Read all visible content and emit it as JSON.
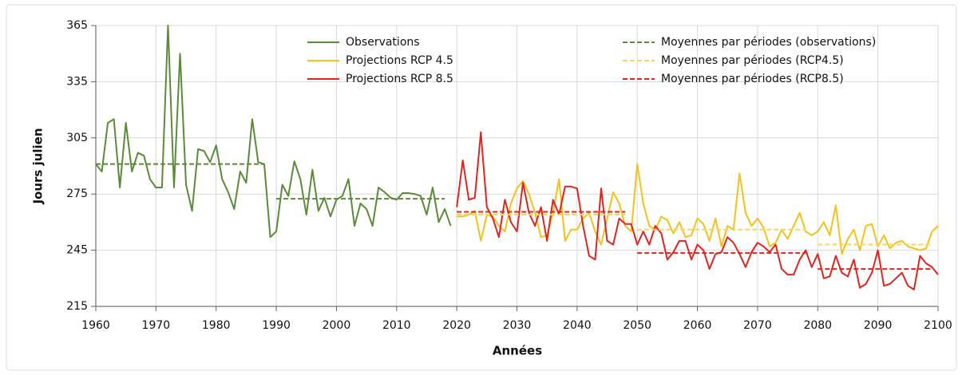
{
  "chart_data": {
    "type": "line",
    "ylabel": "Jours julien",
    "xlabel": "Années",
    "xlim": [
      1960,
      2100
    ],
    "xticks": [
      1960,
      1970,
      1980,
      1990,
      2000,
      2010,
      2020,
      2030,
      2040,
      2050,
      2060,
      2070,
      2080,
      2090,
      2100
    ],
    "ylim": [
      215,
      365
    ],
    "yticks": [
      215,
      245,
      275,
      305,
      335,
      365
    ],
    "grid": true,
    "x": [
      1960,
      1961,
      1962,
      1963,
      1964,
      1965,
      1966,
      1967,
      1968,
      1969,
      1970,
      1971,
      1972,
      1973,
      1974,
      1975,
      1976,
      1977,
      1978,
      1979,
      1980,
      1981,
      1982,
      1983,
      1984,
      1985,
      1986,
      1987,
      1988,
      1989,
      1990,
      1991,
      1992,
      1993,
      1994,
      1995,
      1996,
      1997,
      1998,
      1999,
      2000,
      2001,
      2002,
      2003,
      2004,
      2005,
      2006,
      2007,
      2008,
      2009,
      2010,
      2011,
      2012,
      2013,
      2014,
      2015,
      2016,
      2017,
      2018,
      2019,
      2020,
      2021,
      2022,
      2023,
      2024,
      2025,
      2026,
      2027,
      2028,
      2029,
      2030,
      2031,
      2032,
      2033,
      2034,
      2035,
      2036,
      2037,
      2038,
      2039,
      2040,
      2041,
      2042,
      2043,
      2044,
      2045,
      2046,
      2047,
      2048,
      2049,
      2050,
      2051,
      2052,
      2053,
      2054,
      2055,
      2056,
      2057,
      2058,
      2059,
      2060,
      2061,
      2062,
      2063,
      2064,
      2065,
      2066,
      2067,
      2068,
      2069,
      2070,
      2071,
      2072,
      2073,
      2074,
      2075,
      2076,
      2077,
      2078,
      2079,
      2080,
      2081,
      2082,
      2083,
      2084,
      2085,
      2086,
      2087,
      2088,
      2089,
      2090,
      2091,
      2092,
      2093,
      2094,
      2095,
      2096,
      2097,
      2098,
      2099,
      2100
    ],
    "series": [
      {
        "name": "Observations",
        "color": "#5b8b3a",
        "values": [
          291,
          287,
          313,
          315,
          278.5,
          313,
          287,
          297,
          295.5,
          283,
          278.5,
          278.5,
          365,
          278.5,
          350,
          280,
          266,
          299,
          298,
          292,
          301,
          283,
          276,
          267,
          287,
          281,
          315,
          292,
          291,
          252,
          255,
          280,
          274,
          292.5,
          283,
          264,
          288,
          266,
          273,
          263,
          272,
          274,
          283,
          258,
          270,
          267,
          258,
          278.5,
          276,
          273,
          272,
          275.5,
          275.5,
          275,
          274,
          264,
          278.5,
          260,
          267,
          258,
          null,
          null,
          null,
          null,
          null,
          null,
          null,
          null,
          null,
          null,
          null,
          null,
          null,
          null,
          null,
          null,
          null,
          null,
          null,
          null,
          null,
          null,
          null,
          null,
          null,
          null,
          null,
          null,
          null,
          null,
          null,
          null,
          null,
          null,
          null,
          null,
          null,
          null,
          null,
          null,
          null,
          null,
          null,
          null,
          null,
          null,
          null,
          null,
          null,
          null,
          null,
          null,
          null,
          null,
          null,
          null,
          null,
          null,
          null,
          null,
          null,
          null,
          null,
          null,
          null,
          null,
          null,
          null,
          null,
          null,
          null,
          null,
          null,
          null,
          null,
          null,
          null,
          null,
          null,
          null,
          null
        ]
      },
      {
        "name": "Projections RCP 4.5",
        "color": "#f5c21b",
        "values": [
          null,
          null,
          null,
          null,
          null,
          null,
          null,
          null,
          null,
          null,
          null,
          null,
          null,
          null,
          null,
          null,
          null,
          null,
          null,
          null,
          null,
          null,
          null,
          null,
          null,
          null,
          null,
          null,
          null,
          null,
          null,
          null,
          null,
          null,
          null,
          null,
          null,
          null,
          null,
          null,
          null,
          null,
          null,
          null,
          null,
          null,
          null,
          null,
          null,
          null,
          null,
          null,
          null,
          null,
          null,
          null,
          null,
          null,
          null,
          null,
          263,
          263,
          264,
          266,
          250,
          264,
          263,
          258,
          255,
          270,
          278,
          282,
          275,
          265,
          252,
          253,
          265,
          283,
          250,
          256,
          256,
          262,
          265,
          255,
          248,
          262,
          276,
          270,
          258,
          255,
          291,
          270,
          258,
          256,
          263,
          261,
          254,
          260,
          252,
          253,
          262,
          259,
          250,
          262,
          247,
          258,
          256,
          286,
          265,
          258,
          262,
          257,
          247,
          249,
          256,
          251,
          258,
          265,
          255,
          253,
          255,
          260,
          253,
          269,
          243,
          251,
          256,
          245,
          258,
          259,
          247,
          253,
          246,
          249,
          250,
          247,
          246,
          245,
          246,
          255,
          258
        ]
      },
      {
        "name": "Projections RCP 8.5",
        "color": "#e4231f",
        "values": [
          null,
          null,
          null,
          null,
          null,
          null,
          null,
          null,
          null,
          null,
          null,
          null,
          null,
          null,
          null,
          null,
          null,
          null,
          null,
          null,
          null,
          null,
          null,
          null,
          null,
          null,
          null,
          null,
          null,
          null,
          null,
          null,
          null,
          null,
          null,
          null,
          null,
          null,
          null,
          null,
          null,
          null,
          null,
          null,
          null,
          null,
          null,
          null,
          null,
          null,
          null,
          null,
          null,
          null,
          null,
          null,
          null,
          null,
          null,
          null,
          268,
          293,
          272,
          273,
          308,
          268,
          262,
          252,
          272,
          260,
          255,
          281,
          265,
          258,
          268,
          250,
          272,
          264,
          279,
          279,
          278,
          258,
          242,
          240,
          278,
          250,
          248,
          262,
          259,
          259,
          248,
          255,
          248,
          258,
          254,
          240,
          244,
          250,
          250,
          240,
          248,
          245,
          235,
          243,
          244,
          252,
          249,
          243,
          236,
          244,
          249,
          247,
          244,
          248,
          235,
          232,
          232,
          240,
          245,
          236,
          243,
          230,
          231,
          242,
          233,
          231,
          240,
          225,
          227,
          233,
          245,
          226,
          227,
          230,
          233,
          226,
          224,
          242,
          238,
          236,
          232
        ]
      }
    ],
    "means": [
      {
        "name": "Moyennes par périodes (observations)",
        "color": "#5b8b3a",
        "periods": [
          [
            1960,
            1988
          ],
          [
            1990,
            2018
          ]
        ],
        "values": [
          291,
          272.5
        ]
      },
      {
        "name": "Moyennes par périodes (RCP4.5)",
        "color": "#f8d565",
        "periods": [
          [
            2020,
            2048
          ],
          [
            2050,
            2078
          ],
          [
            2080,
            2099
          ]
        ],
        "values": [
          264,
          256,
          248
        ]
      },
      {
        "name": "Moyennes par périodes (RCP8.5)",
        "color": "#e4231f",
        "periods": [
          [
            2020,
            2048
          ],
          [
            2050,
            2078
          ],
          [
            2080,
            2099
          ]
        ],
        "values": [
          265.5,
          243.5,
          235
        ]
      }
    ]
  }
}
